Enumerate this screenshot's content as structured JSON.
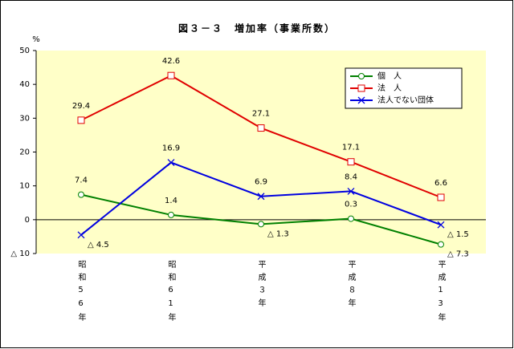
{
  "chart_data": {
    "type": "line",
    "title": "図３－３　増加率（事業所数）",
    "y_unit": "%",
    "categories": [
      "昭和56年",
      "昭和61年",
      "平成３年",
      "平成８年",
      "平成13年"
    ],
    "series": [
      {
        "name": "個　人",
        "color": "#008000",
        "marker": "circle",
        "values": [
          7.4,
          1.4,
          -1.3,
          0.3,
          -7.3
        ],
        "value_labels": [
          "7.4",
          "1.4",
          "△ 1.3",
          "0.3",
          "△ 7.3"
        ]
      },
      {
        "name": "法　人",
        "color": "#e00000",
        "marker": "square",
        "values": [
          29.4,
          42.6,
          27.1,
          17.1,
          6.6
        ]
      },
      {
        "name": "法人でない団体",
        "color": "#0000e0",
        "marker": "x",
        "values": [
          -4.5,
          16.9,
          6.9,
          8.4,
          -1.5
        ],
        "value_labels": [
          "△ 4.5",
          "16.9",
          "6.9",
          "8.4",
          "△ 1.5"
        ]
      }
    ],
    "ylim": [
      -10,
      50
    ],
    "yticks": [
      {
        "value": -10,
        "label": "△ 10"
      },
      0,
      10,
      20,
      30,
      40,
      50
    ],
    "legend": "upper right"
  }
}
